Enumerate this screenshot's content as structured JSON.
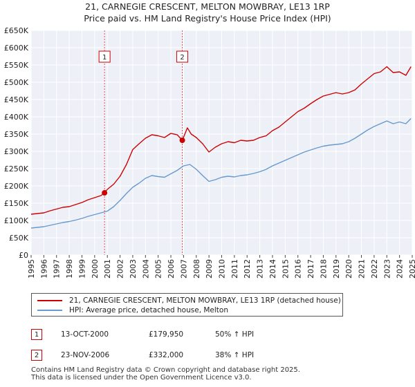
{
  "chart_data": {
    "type": "line",
    "title": "21, CARNEGIE CRESCENT, MELTON MOWBRAY, LE13 1RP",
    "subtitle": "Price paid vs. HM Land Registry's House Price Index (HPI)",
    "xlabel": "",
    "ylabel": "",
    "xlim": [
      1995,
      2025
    ],
    "ylim": [
      0,
      650000
    ],
    "y_ticks": [
      0,
      50000,
      100000,
      150000,
      200000,
      250000,
      300000,
      350000,
      400000,
      450000,
      500000,
      550000,
      600000,
      650000
    ],
    "y_tick_labels": [
      "£0",
      "£50K",
      "£100K",
      "£150K",
      "£200K",
      "£250K",
      "£300K",
      "£350K",
      "£400K",
      "£450K",
      "£500K",
      "£550K",
      "£600K",
      "£650K"
    ],
    "x_ticks": [
      1995,
      1996,
      1997,
      1998,
      1999,
      2000,
      2001,
      2002,
      2003,
      2004,
      2005,
      2006,
      2007,
      2008,
      2009,
      2010,
      2011,
      2012,
      2013,
      2014,
      2015,
      2016,
      2017,
      2018,
      2019,
      2020,
      2021,
      2022,
      2023,
      2024,
      2025
    ],
    "x_tick_labels": [
      "1995",
      "1996",
      "1997",
      "1998",
      "1999",
      "2000",
      "2001",
      "2002",
      "2003",
      "2004",
      "2005",
      "2006",
      "2007",
      "2008",
      "2009",
      "2010",
      "2011",
      "2012",
      "2013",
      "2014",
      "2015",
      "2016",
      "2017",
      "2018",
      "2019",
      "2020",
      "2021",
      "2022",
      "2023",
      "2024",
      "2025"
    ],
    "grid": true,
    "series": [
      {
        "name": "21, CARNEGIE CRESCENT, MELTON MOWBRAY, LE13 1RP (detached house)",
        "color": "#cc0000",
        "x": [
          1995.0,
          1995.5,
          1996.0,
          1996.5,
          1997.0,
          1997.5,
          1998.0,
          1998.5,
          1999.0,
          1999.5,
          2000.0,
          2000.5,
          2000.78,
          2001.0,
          2001.5,
          2002.0,
          2002.5,
          2003.0,
          2003.5,
          2004.0,
          2004.5,
          2005.0,
          2005.5,
          2006.0,
          2006.5,
          2006.9,
          2007.3,
          2007.6,
          2008.0,
          2008.5,
          2009.0,
          2009.5,
          2010.0,
          2010.5,
          2011.0,
          2011.5,
          2012.0,
          2012.5,
          2013.0,
          2013.5,
          2014.0,
          2014.5,
          2015.0,
          2015.5,
          2016.0,
          2016.5,
          2017.0,
          2017.5,
          2018.0,
          2018.5,
          2019.0,
          2019.5,
          2020.0,
          2020.5,
          2021.0,
          2021.5,
          2022.0,
          2022.5,
          2023.0,
          2023.5,
          2024.0,
          2024.5,
          2024.9
        ],
        "y": [
          118000,
          120000,
          122000,
          128000,
          133000,
          138000,
          140000,
          146000,
          152000,
          160000,
          166000,
          172000,
          179950,
          190000,
          205000,
          228000,
          262000,
          305000,
          322000,
          338000,
          348000,
          345000,
          340000,
          352000,
          348000,
          332000,
          368000,
          350000,
          340000,
          322000,
          298000,
          312000,
          322000,
          328000,
          325000,
          332000,
          330000,
          332000,
          340000,
          345000,
          360000,
          370000,
          385000,
          400000,
          415000,
          425000,
          438000,
          450000,
          460000,
          465000,
          470000,
          466000,
          470000,
          478000,
          495000,
          510000,
          525000,
          530000,
          545000,
          528000,
          530000,
          520000,
          545000
        ]
      },
      {
        "name": "HPI: Average price, detached house, Melton",
        "color": "#6699cc",
        "x": [
          1995.0,
          1995.5,
          1996.0,
          1996.5,
          1997.0,
          1997.5,
          1998.0,
          1998.5,
          1999.0,
          1999.5,
          2000.0,
          2000.5,
          2001.0,
          2001.5,
          2002.0,
          2002.5,
          2003.0,
          2003.5,
          2004.0,
          2004.5,
          2005.0,
          2005.5,
          2006.0,
          2006.5,
          2007.0,
          2007.5,
          2008.0,
          2008.5,
          2009.0,
          2009.5,
          2010.0,
          2010.5,
          2011.0,
          2011.5,
          2012.0,
          2012.5,
          2013.0,
          2013.5,
          2014.0,
          2014.5,
          2015.0,
          2015.5,
          2016.0,
          2016.5,
          2017.0,
          2017.5,
          2018.0,
          2018.5,
          2019.0,
          2019.5,
          2020.0,
          2020.5,
          2021.0,
          2021.5,
          2022.0,
          2022.5,
          2023.0,
          2023.5,
          2024.0,
          2024.5,
          2024.9
        ],
        "y": [
          78000,
          80000,
          82000,
          86000,
          90000,
          94000,
          97000,
          101000,
          106000,
          112000,
          117000,
          122000,
          127000,
          140000,
          158000,
          178000,
          196000,
          208000,
          222000,
          230000,
          227000,
          225000,
          235000,
          245000,
          258000,
          262000,
          248000,
          230000,
          213000,
          218000,
          225000,
          228000,
          226000,
          230000,
          232000,
          236000,
          241000,
          248000,
          258000,
          266000,
          274000,
          282000,
          290000,
          298000,
          304000,
          310000,
          315000,
          318000,
          320000,
          322000,
          328000,
          338000,
          350000,
          362000,
          372000,
          380000,
          388000,
          380000,
          385000,
          380000,
          395000
        ]
      }
    ],
    "sales": [
      {
        "marker": "1",
        "x": 2000.78,
        "price": 179950
      },
      {
        "marker": "2",
        "x": 2006.9,
        "price": 332000
      }
    ]
  },
  "legend": {
    "items": [
      {
        "label": "21, CARNEGIE CRESCENT, MELTON MOWBRAY, LE13 1RP (detached house)",
        "color": "#cc0000"
      },
      {
        "label": "HPI: Average price, detached house, Melton",
        "color": "#6699cc"
      }
    ]
  },
  "transactions": [
    {
      "marker": "1",
      "date": "13-OCT-2000",
      "price": "£179,950",
      "hpi": "50% ↑ HPI"
    },
    {
      "marker": "2",
      "date": "23-NOV-2006",
      "price": "£332,000",
      "hpi": "38% ↑ HPI"
    }
  ],
  "footer": {
    "line1": "Contains HM Land Registry data © Crown copyright and database right 2025.",
    "line2": "This data is licensed under the Open Government Licence v3.0."
  }
}
